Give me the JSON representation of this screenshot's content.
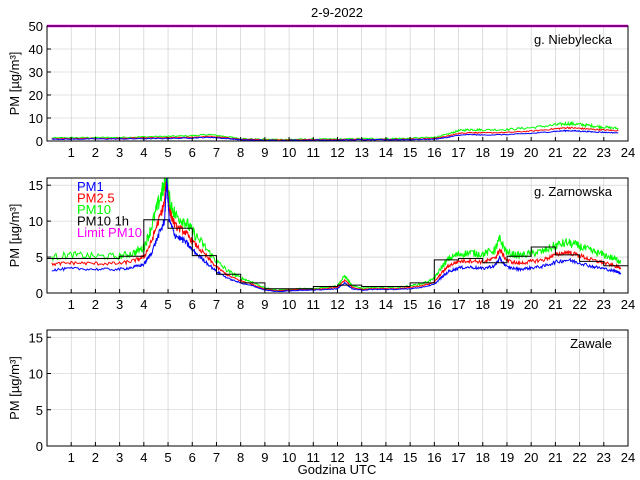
{
  "figure": {
    "date_title": "2-9-2022",
    "xlabel": "Godzina UTC"
  },
  "colors": {
    "pm1": "#0000ff",
    "pm25": "#ff0000",
    "pm10": "#00ff00",
    "pm10_1h": "#000000",
    "limit": "#ff00ff",
    "axes": "#000000",
    "grid": "#c8c8c8"
  },
  "chart_data": [
    {
      "type": "line",
      "station": "g. Niebylecka",
      "ylabel": "PM [µg/m³]",
      "xlim": [
        0,
        24
      ],
      "ylim": [
        0,
        50
      ],
      "xticks": [
        "1",
        "2",
        "3",
        "4",
        "5",
        "6",
        "7",
        "8",
        "9",
        "10",
        "11",
        "12",
        "13",
        "14",
        "15",
        "16",
        "17",
        "18",
        "19",
        "20",
        "21",
        "22",
        "23",
        "24"
      ],
      "yticks": [
        "0",
        "10",
        "20",
        "30",
        "40",
        "50"
      ],
      "grid": true,
      "limit_pm10": 50,
      "series": [
        {
          "name": "PM1",
          "color": "#0000ff",
          "x": [
            0.2,
            1,
            2,
            3,
            4,
            5,
            6,
            6.7,
            7.5,
            8,
            9,
            10,
            11,
            12,
            13,
            14,
            15,
            16,
            16.5,
            17,
            17.5,
            18,
            19,
            20,
            21,
            21.5,
            22,
            22.5,
            23,
            23.6
          ],
          "values": [
            0.8,
            0.8,
            0.9,
            0.9,
            1.0,
            1.1,
            1.3,
            1.6,
            1.0,
            0.5,
            0.3,
            0.3,
            0.4,
            0.4,
            0.5,
            0.5,
            0.6,
            0.8,
            1.5,
            2.5,
            2.8,
            2.6,
            2.8,
            3.3,
            4.2,
            4.5,
            4.3,
            4.0,
            3.8,
            3.5
          ]
        },
        {
          "name": "PM2.5",
          "color": "#ff0000",
          "x": [
            0.2,
            1,
            2,
            3,
            4,
            5,
            6,
            6.7,
            7.5,
            8,
            9,
            10,
            11,
            12,
            13,
            14,
            15,
            16,
            16.5,
            17,
            17.5,
            18,
            19,
            20,
            21,
            21.5,
            22,
            22.5,
            23,
            23.6
          ],
          "values": [
            1.0,
            1.0,
            1.1,
            1.1,
            1.3,
            1.4,
            1.6,
            2.0,
            1.3,
            0.7,
            0.5,
            0.5,
            0.6,
            0.6,
            0.7,
            0.7,
            0.8,
            1.1,
            2.0,
            3.3,
            3.7,
            3.5,
            3.7,
            4.3,
            5.3,
            5.8,
            5.5,
            5.1,
            4.8,
            4.5
          ]
        },
        {
          "name": "PM10",
          "color": "#00ff00",
          "x": [
            0.2,
            1,
            2,
            3,
            4,
            5,
            6,
            6.7,
            7.5,
            8,
            9,
            10,
            11,
            12,
            13,
            14,
            15,
            16,
            16.5,
            17,
            17.5,
            18,
            19,
            20,
            21,
            21.5,
            22,
            22.5,
            23,
            23.6
          ],
          "values": [
            1.3,
            1.4,
            1.5,
            1.5,
            1.8,
            2.0,
            2.3,
            2.8,
            1.8,
            1.0,
            0.7,
            0.7,
            0.8,
            0.8,
            1.0,
            1.0,
            1.2,
            1.6,
            2.8,
            4.5,
            5.0,
            4.8,
            5.0,
            5.8,
            7.0,
            7.6,
            7.2,
            6.6,
            6.0,
            5.5
          ]
        }
      ],
      "pm10_1h": [],
      "station_label_pos": "top-right"
    },
    {
      "type": "line",
      "station": "g. Zarnowska",
      "ylabel": "PM [µg/m³]",
      "xlim": [
        0,
        24
      ],
      "ylim": [
        0,
        16
      ],
      "xticks": [
        "1",
        "2",
        "3",
        "4",
        "5",
        "6",
        "7",
        "8",
        "9",
        "10",
        "11",
        "12",
        "13",
        "14",
        "15",
        "16",
        "17",
        "18",
        "19",
        "20",
        "21",
        "22",
        "23",
        "24"
      ],
      "yticks": [
        "0",
        "5",
        "10",
        "15"
      ],
      "grid": true,
      "legend": {
        "position": "top-left",
        "entries": [
          "PM1",
          "PM2.5",
          "PM10",
          "PM10 1h",
          "Limit PM10"
        ]
      },
      "series": [
        {
          "name": "PM1",
          "color": "#0000ff",
          "x": [
            0.2,
            1,
            2,
            3,
            3.6,
            4,
            4.3,
            4.6,
            4.85,
            4.95,
            5.05,
            5.3,
            5.7,
            6,
            6.5,
            7,
            7.5,
            8,
            8.5,
            9,
            9.5,
            10,
            10.5,
            11,
            11.5,
            12,
            12.3,
            12.6,
            13,
            13.5,
            14,
            14.5,
            15,
            15.5,
            16,
            16.3,
            16.6,
            17,
            17.5,
            18,
            18.5,
            18.7,
            19,
            19.5,
            20,
            20.5,
            21,
            21.5,
            22,
            22.5,
            23,
            23.5,
            23.7
          ],
          "values": [
            3.2,
            3.4,
            3.3,
            3.3,
            3.6,
            4.0,
            5.5,
            8.0,
            10.0,
            15.8,
            10.0,
            8.0,
            7.2,
            6.0,
            4.5,
            3.0,
            2.0,
            1.4,
            1.0,
            0.4,
            0.2,
            0.3,
            0.4,
            0.4,
            0.5,
            0.6,
            1.4,
            0.6,
            0.4,
            0.5,
            0.5,
            0.5,
            0.6,
            0.8,
            1.2,
            2.2,
            3.0,
            3.5,
            3.6,
            3.4,
            3.8,
            4.8,
            3.6,
            3.3,
            3.5,
            3.7,
            4.3,
            4.6,
            4.2,
            3.7,
            3.4,
            3.0,
            2.8
          ]
        },
        {
          "name": "PM2.5",
          "color": "#ff0000",
          "x": [
            0.2,
            1,
            2,
            3,
            3.6,
            4,
            4.3,
            4.6,
            4.85,
            4.95,
            5.05,
            5.3,
            5.7,
            6,
            6.5,
            7,
            7.5,
            8,
            8.5,
            9,
            9.5,
            10,
            10.5,
            11,
            11.5,
            12,
            12.3,
            12.6,
            13,
            13.5,
            14,
            14.5,
            15,
            15.5,
            16,
            16.3,
            16.6,
            17,
            17.5,
            18,
            18.5,
            18.7,
            19,
            19.5,
            20,
            20.5,
            21,
            21.5,
            22,
            22.5,
            23,
            23.5,
            23.7
          ],
          "values": [
            4.0,
            4.2,
            4.1,
            4.1,
            4.5,
            5.0,
            7.0,
            10.0,
            12.5,
            16.0,
            11.5,
            9.3,
            8.5,
            7.2,
            5.4,
            3.6,
            2.4,
            1.7,
            1.2,
            0.5,
            0.3,
            0.4,
            0.5,
            0.5,
            0.6,
            0.8,
            1.8,
            0.8,
            0.5,
            0.6,
            0.6,
            0.6,
            0.8,
            1.0,
            1.5,
            2.8,
            3.8,
            4.4,
            4.5,
            4.3,
            4.8,
            6.0,
            4.5,
            4.1,
            4.4,
            4.6,
            5.3,
            5.7,
            5.2,
            4.6,
            4.2,
            3.7,
            3.5
          ]
        },
        {
          "name": "PM10",
          "color": "#00ff00",
          "x": [
            0.2,
            1,
            2,
            3,
            3.6,
            4,
            4.3,
            4.6,
            4.85,
            4.95,
            5.05,
            5.3,
            5.7,
            6,
            6.5,
            7,
            7.5,
            8,
            8.5,
            9,
            9.5,
            10,
            10.5,
            11,
            11.5,
            12,
            12.3,
            12.6,
            13,
            13.5,
            14,
            14.5,
            15,
            15.5,
            16,
            16.3,
            16.6,
            17,
            17.5,
            18,
            18.5,
            18.7,
            19,
            19.5,
            20,
            20.5,
            21,
            21.5,
            22,
            22.5,
            23,
            23.5,
            23.7
          ],
          "values": [
            5.0,
            5.3,
            5.1,
            5.1,
            5.6,
            6.3,
            9.0,
            12.5,
            15.0,
            16.0,
            13.0,
            10.8,
            10.0,
            8.6,
            6.5,
            4.4,
            3.0,
            2.1,
            1.5,
            0.7,
            0.4,
            0.5,
            0.6,
            0.6,
            0.8,
            1.0,
            2.4,
            1.0,
            0.7,
            0.8,
            0.8,
            0.8,
            1.0,
            1.3,
            2.0,
            3.6,
            4.8,
            5.4,
            5.6,
            5.4,
            6.0,
            7.5,
            5.6,
            5.2,
            5.5,
            5.8,
            6.6,
            7.0,
            6.5,
            5.8,
            5.3,
            4.7,
            4.4
          ]
        }
      ],
      "pm10_1h": [
        4.8,
        4.8,
        4.8,
        5.1,
        10.2,
        9.0,
        5.2,
        2.6,
        1.4,
        0.6,
        0.6,
        0.9,
        1.1,
        0.9,
        0.9,
        1.4,
        4.6,
        4.8,
        4.2,
        5.1,
        6.4,
        5.3,
        4.4,
        3.8
      ],
      "station_label_pos": "top-right"
    },
    {
      "type": "line",
      "station": "Zawale",
      "ylabel": "PM [µg/m³]",
      "xlim": [
        0,
        24
      ],
      "ylim": [
        0,
        16
      ],
      "xticks": [
        "1",
        "2",
        "3",
        "4",
        "5",
        "6",
        "7",
        "8",
        "9",
        "10",
        "11",
        "12",
        "13",
        "14",
        "15",
        "16",
        "17",
        "18",
        "19",
        "20",
        "21",
        "22",
        "23",
        "24"
      ],
      "yticks": [
        "0",
        "5",
        "10",
        "15"
      ],
      "grid": true,
      "series": [],
      "pm10_1h": [],
      "station_label_pos": "top-right"
    }
  ]
}
